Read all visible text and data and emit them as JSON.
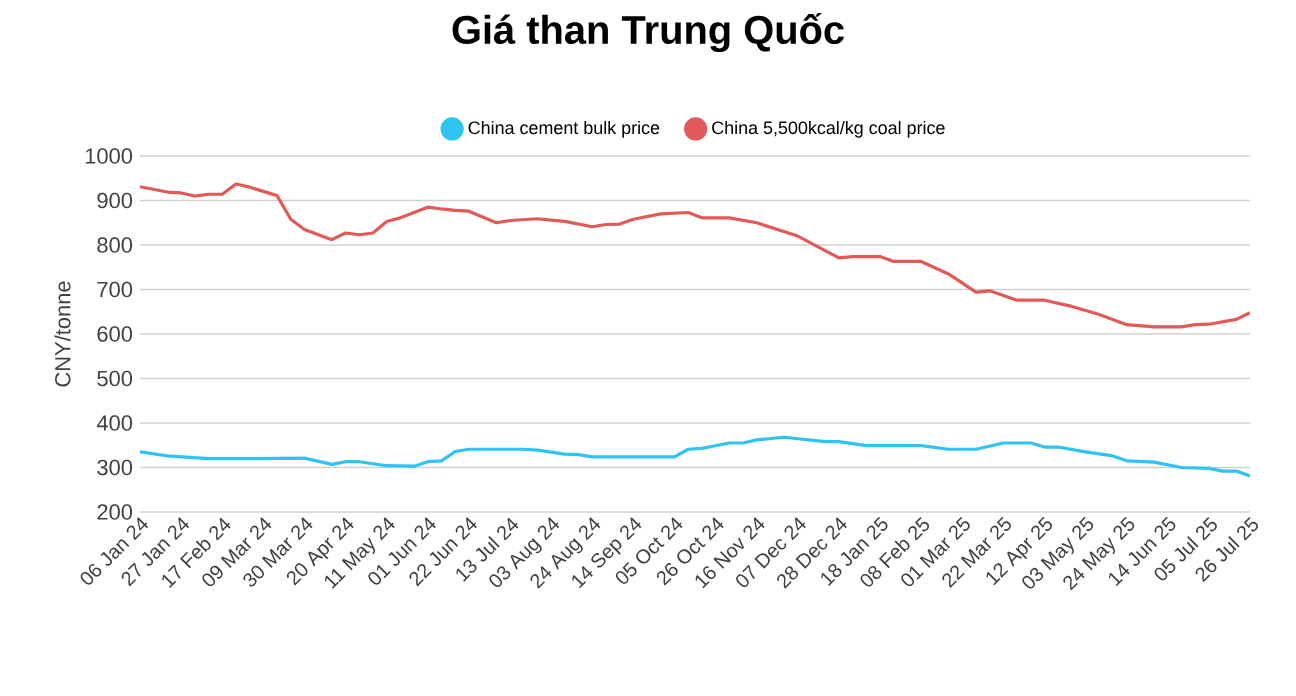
{
  "chart_data": {
    "type": "line",
    "title": "Giá than Trung Quốc",
    "ylabel": "CNY/tonne",
    "series": [
      {
        "name": "China cement bulk price",
        "color": "#2ec4ef",
        "x": [
          "2024-01-06",
          "2024-01-20",
          "2024-01-27",
          "2024-02-10",
          "2024-03-02",
          "2024-03-30",
          "2024-04-13",
          "2024-04-20",
          "2024-04-27",
          "2024-05-11",
          "2024-05-25",
          "2024-06-01",
          "2024-06-08",
          "2024-06-15",
          "2024-06-22",
          "2024-07-20",
          "2024-07-27",
          "2024-08-10",
          "2024-08-17",
          "2024-08-24",
          "2024-09-14",
          "2024-10-05",
          "2024-10-12",
          "2024-10-19",
          "2024-11-02",
          "2024-11-09",
          "2024-11-16",
          "2024-11-30",
          "2024-12-21",
          "2024-12-28",
          "2025-01-11",
          "2025-02-08",
          "2025-02-22",
          "2025-03-08",
          "2025-03-22",
          "2025-04-05",
          "2025-04-12",
          "2025-04-19",
          "2025-05-03",
          "2025-05-17",
          "2025-05-24",
          "2025-06-07",
          "2025-06-21",
          "2025-07-05",
          "2025-07-12",
          "2025-07-19",
          "2025-07-26"
        ],
        "values": [
          335,
          326,
          324,
          320,
          320,
          321,
          307,
          313,
          313,
          304,
          303,
          313,
          315,
          336,
          341,
          341,
          339,
          330,
          329,
          324,
          324,
          324,
          341,
          343,
          355,
          355,
          362,
          368,
          358,
          358,
          349,
          349,
          341,
          341,
          355,
          355,
          346,
          346,
          335,
          326,
          315,
          312,
          300,
          298,
          292,
          292,
          281
        ]
      },
      {
        "name": "China 5,500kcal/kg coal price",
        "color": "#e05a5a",
        "x": [
          "2024-01-06",
          "2024-01-20",
          "2024-01-27",
          "2024-02-03",
          "2024-02-10",
          "2024-02-17",
          "2024-02-24",
          "2024-03-02",
          "2024-03-16",
          "2024-03-23",
          "2024-03-30",
          "2024-04-13",
          "2024-04-20",
          "2024-04-27",
          "2024-05-04",
          "2024-05-11",
          "2024-05-18",
          "2024-06-01",
          "2024-06-08",
          "2024-06-15",
          "2024-06-22",
          "2024-07-06",
          "2024-07-13",
          "2024-07-27",
          "2024-08-03",
          "2024-08-10",
          "2024-08-24",
          "2024-08-31",
          "2024-09-07",
          "2024-09-14",
          "2024-09-28",
          "2024-10-12",
          "2024-10-19",
          "2024-11-02",
          "2024-11-16",
          "2024-12-07",
          "2024-12-28",
          "2025-01-04",
          "2025-01-18",
          "2025-01-25",
          "2025-02-08",
          "2025-02-22",
          "2025-03-08",
          "2025-03-15",
          "2025-03-29",
          "2025-04-12",
          "2025-04-26",
          "2025-05-10",
          "2025-05-24",
          "2025-06-07",
          "2025-06-21",
          "2025-06-28",
          "2025-07-05",
          "2025-07-19",
          "2025-07-26"
        ],
        "values": [
          931,
          919,
          917,
          910,
          914,
          914,
          937,
          930,
          911,
          858,
          835,
          812,
          827,
          823,
          827,
          853,
          861,
          885,
          881,
          878,
          876,
          850,
          855,
          859,
          856,
          853,
          841,
          846,
          847,
          858,
          870,
          873,
          861,
          861,
          850,
          820,
          771,
          774,
          774,
          763,
          763,
          735,
          694,
          697,
          676,
          676,
          662,
          644,
          621,
          616,
          616,
          621,
          622,
          633,
          648
        ]
      }
    ],
    "xlim": [
      "2024-01-06",
      "2025-07-26"
    ],
    "xticks": [
      {
        "value": "2024-01-06",
        "label": "06 Jan 24"
      },
      {
        "value": "2024-01-27",
        "label": "27 Jan 24"
      },
      {
        "value": "2024-02-17",
        "label": "17 Feb 24"
      },
      {
        "value": "2024-03-09",
        "label": "09 Mar 24"
      },
      {
        "value": "2024-03-30",
        "label": "30 Mar 24"
      },
      {
        "value": "2024-04-20",
        "label": "20 Apr 24"
      },
      {
        "value": "2024-05-11",
        "label": "11 May 24"
      },
      {
        "value": "2024-06-01",
        "label": "01 Jun 24"
      },
      {
        "value": "2024-06-22",
        "label": "22 Jun 24"
      },
      {
        "value": "2024-07-13",
        "label": "13 Jul 24"
      },
      {
        "value": "2024-08-03",
        "label": "03 Aug 24"
      },
      {
        "value": "2024-08-24",
        "label": "24 Aug 24"
      },
      {
        "value": "2024-09-14",
        "label": "14 Sep 24"
      },
      {
        "value": "2024-10-05",
        "label": "05 Oct 24"
      },
      {
        "value": "2024-10-26",
        "label": "26 Oct 24"
      },
      {
        "value": "2024-11-16",
        "label": "16 Nov 24"
      },
      {
        "value": "2024-12-07",
        "label": "07 Dec 24"
      },
      {
        "value": "2024-12-28",
        "label": "28 Dec 24"
      },
      {
        "value": "2025-01-18",
        "label": "18 Jan 25"
      },
      {
        "value": "2025-02-08",
        "label": "08 Feb 25"
      },
      {
        "value": "2025-03-01",
        "label": "01 Mar 25"
      },
      {
        "value": "2025-03-22",
        "label": "22 Mar 25"
      },
      {
        "value": "2025-04-12",
        "label": "12 Apr 25"
      },
      {
        "value": "2025-05-03",
        "label": "03 May 25"
      },
      {
        "value": "2025-05-24",
        "label": "24 May 25"
      },
      {
        "value": "2025-06-14",
        "label": "14 Jun 25"
      },
      {
        "value": "2025-07-05",
        "label": "05 Jul 25"
      },
      {
        "value": "2025-07-26",
        "label": "26 Jul 25"
      }
    ],
    "ylim": [
      200,
      1000
    ],
    "yticks": [
      200,
      300,
      400,
      500,
      600,
      700,
      800,
      900,
      1000
    ],
    "grid": "y",
    "legend": "top",
    "marker": "none",
    "line_style": "solid"
  }
}
